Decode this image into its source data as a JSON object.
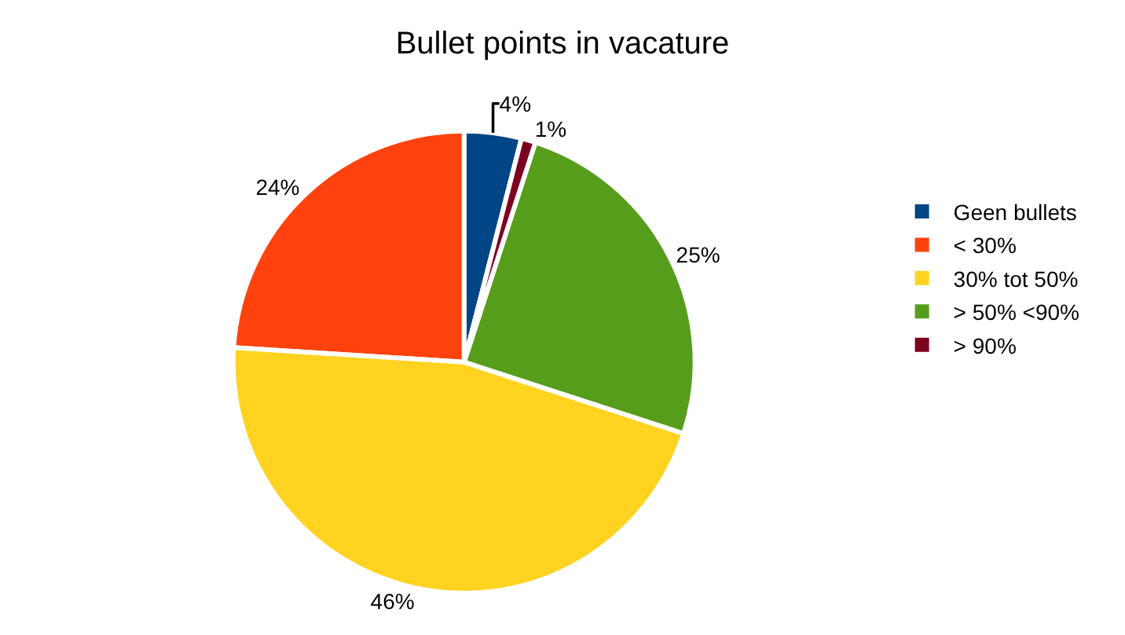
{
  "chart_data": {
    "type": "pie",
    "title": "Bullet points in vacature",
    "categories": [
      "Geen bullets",
      "< 30%",
      "30% tot 50%",
      "> 50% <90%",
      "> 90%"
    ],
    "values": [
      4,
      24,
      46,
      25,
      1
    ],
    "value_labels": [
      "4%",
      "24%",
      "46%",
      "25%",
      "1%"
    ],
    "colors": [
      "#004586",
      "#ff420e",
      "#ffd320",
      "#579d1c",
      "#7e0021"
    ],
    "legend": "right"
  }
}
